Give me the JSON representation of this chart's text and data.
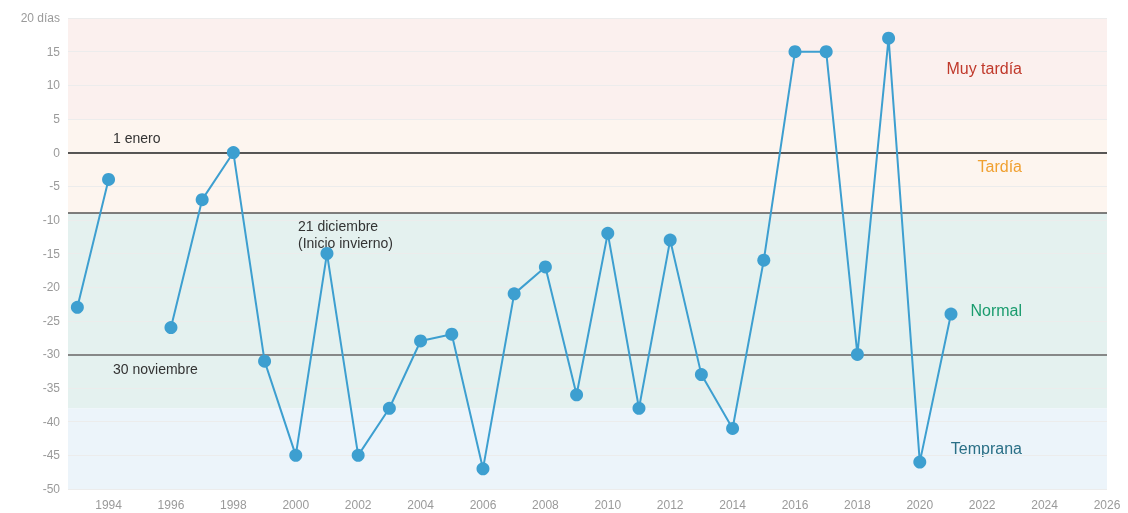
{
  "chart_data": {
    "type": "line",
    "x": [
      1993,
      1994,
      1995,
      1996,
      1997,
      1998,
      1999,
      2000,
      2001,
      2002,
      2003,
      2004,
      2005,
      2006,
      2007,
      2008,
      2009,
      2010,
      2011,
      2012,
      2013,
      2014,
      2015,
      2016,
      2017,
      2018,
      2019,
      2020,
      2021
    ],
    "series": [
      {
        "color": "#3d9fd0",
        "values": [
          -23,
          -4,
          null,
          -26,
          -7,
          0,
          -31,
          -45,
          -15,
          -45,
          -38,
          -28,
          -27,
          -47,
          -21,
          -17,
          -36,
          -12,
          -38,
          -13,
          -33,
          -41,
          -16,
          15,
          15,
          -30,
          17,
          -46,
          -24
        ]
      }
    ],
    "xlim": [
      1992.7,
      2026
    ],
    "xticks": [
      1994,
      1996,
      1998,
      2000,
      2002,
      2004,
      2006,
      2008,
      2010,
      2012,
      2014,
      2016,
      2018,
      2020,
      2022,
      2024,
      2026
    ],
    "ylim": [
      -50,
      20
    ],
    "yticks": [
      -50,
      -45,
      -40,
      -35,
      -30,
      -25,
      -20,
      -15,
      -10,
      -5,
      0,
      5,
      10,
      15,
      {
        "value": 20,
        "label": "20 días"
      }
    ],
    "grid": "y",
    "marker": "circle",
    "line_style": "solid",
    "bands": [
      {
        "axis": "y",
        "from": 5,
        "to": 20,
        "label": "Muy tardía",
        "color": "#fbf0ee"
      },
      {
        "axis": "y",
        "from": -9,
        "to": 5,
        "label": "Tardía",
        "color": "#fdf5ef"
      },
      {
        "axis": "y",
        "from": -38,
        "to": -9,
        "label": "Normal",
        "color": "#e4f1ef"
      },
      {
        "axis": "y",
        "from": -50,
        "to": -38,
        "label": "Temprana",
        "color": "#ecf4fa"
      }
    ],
    "ref_lines": [
      {
        "axis": "y",
        "value": 0,
        "label": "1 enero",
        "color": "#222222"
      },
      {
        "axis": "y",
        "value": -9,
        "label": "21 diciembre\n(Inicio invierno)",
        "color": "#555555"
      },
      {
        "axis": "y",
        "value": -30,
        "label": "30 noviembre",
        "color": "#666666"
      }
    ]
  }
}
